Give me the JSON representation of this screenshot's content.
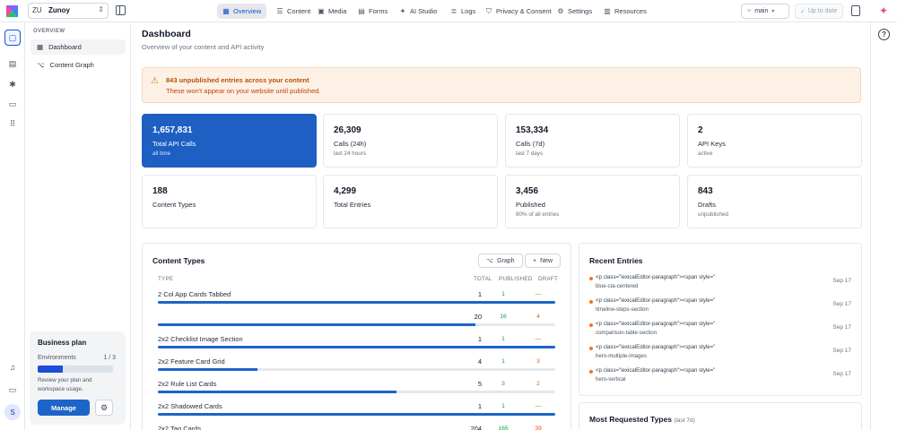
{
  "workspace": {
    "abbr": "ZU",
    "name": "Zunoy"
  },
  "nav": [
    {
      "label": "Overview",
      "icon": "grid-icon",
      "active": true
    },
    {
      "label": "Content",
      "icon": "table-icon"
    },
    {
      "label": "Media",
      "icon": "image-icon"
    },
    {
      "label": "Forms",
      "icon": "form-icon"
    },
    {
      "label": "AI Studio",
      "icon": "sparkle-icon"
    },
    {
      "label": "Logs",
      "icon": "logs-icon"
    },
    {
      "label": "Privacy & Consent",
      "icon": "shield-icon"
    },
    {
      "label": "Settings",
      "icon": "gear-icon"
    },
    {
      "label": "Resources",
      "icon": "book-icon"
    }
  ],
  "branch": {
    "label": "main"
  },
  "status": {
    "label": "Up to date"
  },
  "sidebar": {
    "section": "OVERVIEW",
    "items": [
      {
        "label": "Dashboard",
        "icon": "dashboard-icon",
        "active": true
      },
      {
        "label": "Content Graph",
        "icon": "graph-icon"
      }
    ]
  },
  "plan": {
    "title": "Business plan",
    "env_label": "Environments",
    "env_count": "1 / 3",
    "env_fraction": 0.333,
    "desc": "Review your plan and workspace usage.",
    "manage_label": "Manage"
  },
  "user": {
    "initial": "S"
  },
  "header": {
    "title": "Dashboard",
    "subtitle": "Overview of your content and API activity"
  },
  "alert": {
    "title": "843 unpublished entries across your content",
    "desc": "These won't appear on your website until published."
  },
  "stats": [
    {
      "value": "1,657,831",
      "label": "Total API Calls",
      "sub": "all time",
      "primary": true
    },
    {
      "value": "26,309",
      "label": "Calls (24h)",
      "sub": "last 24 hours"
    },
    {
      "value": "153,334",
      "label": "Calls (7d)",
      "sub": "last 7 days"
    },
    {
      "value": "2",
      "label": "API Keys",
      "sub": "active"
    },
    {
      "value": "188",
      "label": "Content Types",
      "sub": ""
    },
    {
      "value": "4,299",
      "label": "Total Entries",
      "sub": ""
    },
    {
      "value": "3,456",
      "label": "Published",
      "sub": "80% of all entries"
    },
    {
      "value": "843",
      "label": "Drafts",
      "sub": "unpublished"
    }
  ],
  "content_types": {
    "title": "Content Types",
    "graph_label": "Graph",
    "new_label": "New",
    "columns": {
      "type": "TYPE",
      "total": "TOTAL",
      "published": "PUBLISHED",
      "draft": "DRAFT"
    },
    "rows": [
      {
        "name": "2 Col App Cards Tabbed",
        "total": "1",
        "published": "1",
        "draft": "—",
        "bar": 1.0
      },
      {
        "name": "",
        "total": "20",
        "published": "16",
        "draft": "4",
        "bar": 0.8
      },
      {
        "name": "2x2 Checklist Image Section",
        "total": "1",
        "published": "1",
        "draft": "—",
        "bar": 1.0
      },
      {
        "name": "2x2 Feature Card Grid",
        "total": "4",
        "published": "1",
        "draft": "3",
        "bar": 0.25
      },
      {
        "name": "2x2 Rule List Cards",
        "total": "5",
        "published": "3",
        "draft": "2",
        "bar": 0.6
      },
      {
        "name": "2x2 Shadowed Cards",
        "total": "1",
        "published": "1",
        "draft": "—",
        "bar": 1.0
      },
      {
        "name": "2x2 Tag Cards",
        "total": "204",
        "published": "165",
        "draft": "39",
        "bar": 0.81
      }
    ]
  },
  "recent_entries": {
    "title": "Recent Entries",
    "items": [
      {
        "line1": "<p class=\"lexicalEditor-paragraph\"><span style=\"",
        "line2": "blue-cta-centered",
        "date": "Sep 17"
      },
      {
        "line1": "<p class=\"lexicalEditor-paragraph\"><span style=\"",
        "line2": "timeline-steps-section",
        "date": "Sep 17"
      },
      {
        "line1": "<p class=\"lexicalEditor-paragraph\"><span style=\"",
        "line2": "comparison-table-section",
        "date": "Sep 17"
      },
      {
        "line1": "<p class=\"lexicalEditor-paragraph\"><span style=\"",
        "line2": "hero-multiple-images",
        "date": "Sep 17"
      },
      {
        "line1": "<p class=\"lexicalEditor-paragraph\"><span style=\"",
        "line2": "hero-vertical",
        "date": "Sep 17"
      }
    ]
  },
  "most_requested": {
    "title": "Most Requested Types",
    "sub": "(last 7d)"
  },
  "colors": {
    "accent": "#1d64c8",
    "warning_bg": "#fdf1e6",
    "published": "#16a34a",
    "draft": "#ea580c"
  }
}
